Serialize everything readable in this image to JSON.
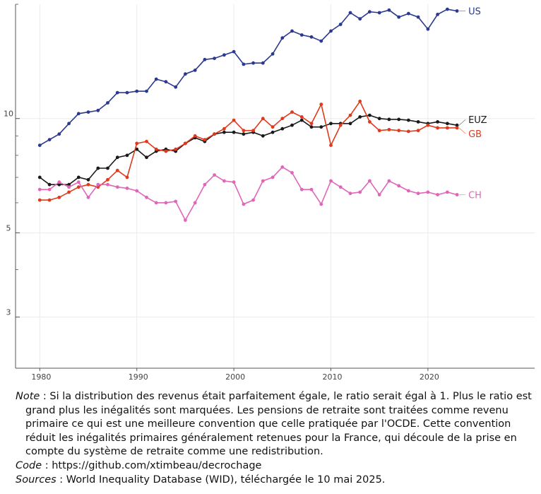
{
  "chart_data": {
    "type": "line",
    "title": "",
    "xlabel": "",
    "ylabel": "",
    "y_scale": "log",
    "xlim": [
      1977.5,
      2031
    ],
    "ylim": [
      2.2,
      20
    ],
    "x_ticks": [
      1980,
      1990,
      2000,
      2010,
      2020
    ],
    "x_tick_labels": [
      "1980",
      "1990",
      "2000",
      "2010",
      "2020"
    ],
    "y_ticks": [
      3,
      5,
      10
    ],
    "y_tick_labels": [
      "3",
      "5",
      "10"
    ],
    "grid": true,
    "legend": "inline labels at right end of each series",
    "x": [
      1980,
      1981,
      1982,
      1983,
      1984,
      1985,
      1986,
      1987,
      1988,
      1989,
      1990,
      1991,
      1992,
      1993,
      1994,
      1995,
      1996,
      1997,
      1998,
      1999,
      2000,
      2001,
      2002,
      2003,
      2004,
      2005,
      2006,
      2007,
      2008,
      2009,
      2010,
      2011,
      2012,
      2013,
      2014,
      2015,
      2016,
      2017,
      2018,
      2019,
      2020,
      2021,
      2022,
      2023
    ],
    "series": [
      {
        "name": "US",
        "color": "#2b3990",
        "values": [
          8.5,
          8.8,
          9.1,
          9.7,
          10.3,
          10.4,
          10.5,
          11.0,
          11.7,
          11.7,
          11.8,
          11.8,
          12.7,
          12.5,
          12.1,
          13.1,
          13.4,
          14.3,
          14.4,
          14.7,
          15.0,
          13.9,
          14.0,
          14.0,
          14.8,
          16.3,
          17.0,
          16.6,
          16.4,
          16.0,
          17.0,
          17.7,
          19.0,
          18.3,
          19.1,
          19.0,
          19.3,
          18.5,
          18.9,
          18.5,
          17.2,
          18.8,
          19.4,
          19.2
        ]
      },
      {
        "name": "EUZ",
        "color": "#1a1a1a",
        "values": [
          7.0,
          6.7,
          6.7,
          6.7,
          7.0,
          6.9,
          7.4,
          7.4,
          7.9,
          8.0,
          8.3,
          7.9,
          8.2,
          8.3,
          8.2,
          8.6,
          8.9,
          8.7,
          9.1,
          9.2,
          9.2,
          9.1,
          9.2,
          9.0,
          9.2,
          9.4,
          9.6,
          9.9,
          9.5,
          9.5,
          9.7,
          9.7,
          9.7,
          10.1,
          10.2,
          10.0,
          9.95,
          9.95,
          9.9,
          9.8,
          9.7,
          9.8,
          9.7,
          9.6
        ]
      },
      {
        "name": "GB",
        "color": "#e0391b",
        "values": [
          6.1,
          6.1,
          6.2,
          6.4,
          6.6,
          6.7,
          6.6,
          6.9,
          7.3,
          7.0,
          8.6,
          8.7,
          8.3,
          8.2,
          8.3,
          8.6,
          9.0,
          8.8,
          9.1,
          9.4,
          9.9,
          9.3,
          9.3,
          10.0,
          9.5,
          10.0,
          10.4,
          10.1,
          9.7,
          10.9,
          8.5,
          9.6,
          10.2,
          11.1,
          9.8,
          9.3,
          9.35,
          9.3,
          9.25,
          9.3,
          9.6,
          9.45,
          9.45,
          9.45
        ]
      },
      {
        "name": "CH",
        "color": "#df66b8",
        "values": [
          6.5,
          6.5,
          6.8,
          6.6,
          6.8,
          6.2,
          6.7,
          6.7,
          6.6,
          6.55,
          6.45,
          6.2,
          6.0,
          6.0,
          6.05,
          5.4,
          6.0,
          6.7,
          7.1,
          6.85,
          6.8,
          5.95,
          6.1,
          6.85,
          7.0,
          7.45,
          7.2,
          6.5,
          6.5,
          5.95,
          6.85,
          6.6,
          6.35,
          6.4,
          6.85,
          6.3,
          6.85,
          6.65,
          6.45,
          6.35,
          6.4,
          6.3,
          6.4,
          6.3
        ]
      }
    ]
  },
  "notes": {
    "note_label": "Note",
    "note_text": " : Si la distribution des revenus était parfaitement égale, le ratio serait égal à 1. Plus le ratio est grand plus les inégalités sont marquées. Les pensions de retraite sont traitées comme revenu primaire ce qui est une meilleure convention que celle pratiquée par l'OCDE. Cette convention réduit les inégalités primaires généralement retenues pour la France, qui découle de la prise en compte du système de retraite comme une redistribution.",
    "code_label": "Code",
    "code_text": " : https://github.com/xtimbeau/decrochage",
    "sources_label": "Sources",
    "sources_text": " : World Inequality Database (WID), téléchargée le 10 mai 2025."
  }
}
